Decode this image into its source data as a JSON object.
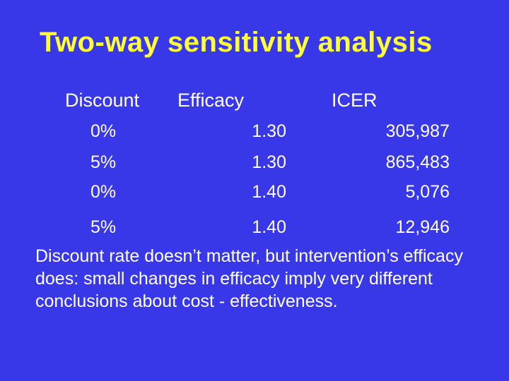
{
  "slide": {
    "title": "Two-way sensitivity analysis"
  },
  "table": {
    "headers": {
      "discount": "Discount",
      "efficacy": "Efficacy",
      "icer": "ICER"
    },
    "rows": [
      {
        "discount": "0%",
        "efficacy": "1.30",
        "icer": "305,987"
      },
      {
        "discount": "5%",
        "efficacy": "1.30",
        "icer": "865,483"
      },
      {
        "discount": "0%",
        "efficacy": "1.40",
        "icer": "5,076"
      },
      {
        "discount": "5%",
        "efficacy": "1.40",
        "icer": "12,946"
      }
    ]
  },
  "conclusion": "Discount rate doesn’t matter, but intervention’s efficacy does: small changes in efficacy imply very different conclusions about cost - effectiveness.",
  "colors": {
    "background": "#3838e8",
    "title": "#ffff33",
    "text": "#ffffff"
  }
}
